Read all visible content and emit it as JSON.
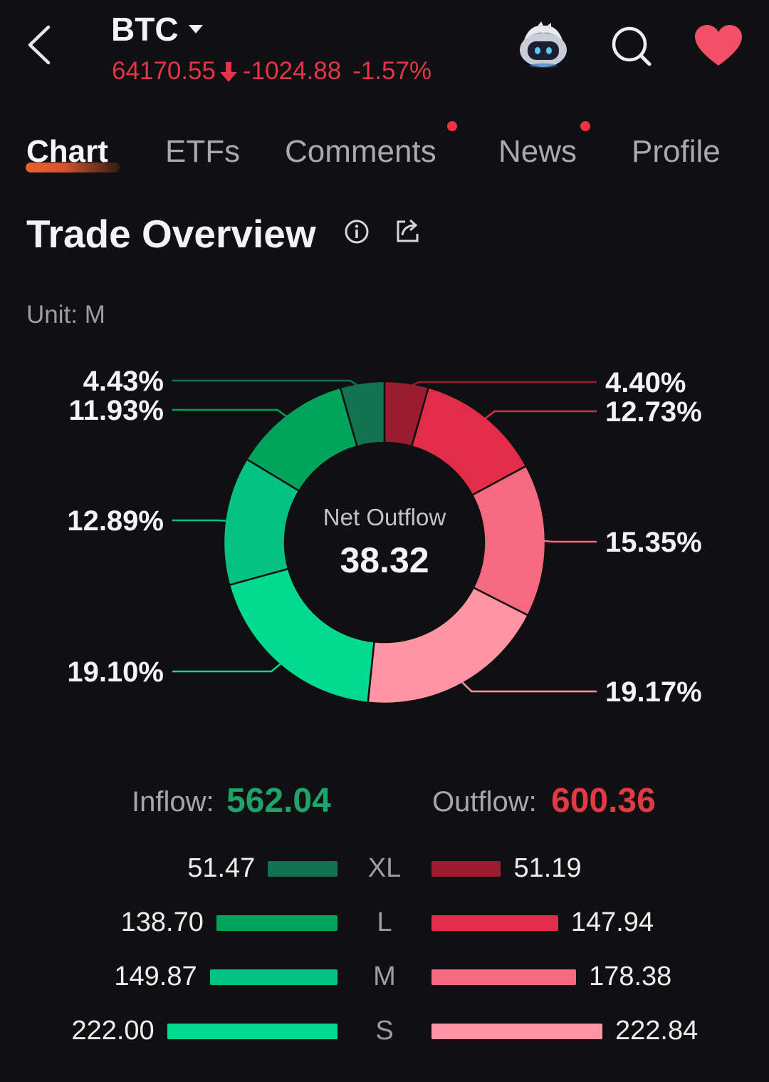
{
  "header": {
    "symbol": "BTC",
    "price": "64170.55",
    "change": "-1024.88",
    "change_pct": "-1.57%",
    "price_color": "#e5344a"
  },
  "tabs": [
    {
      "label": "Chart",
      "active": true
    },
    {
      "label": "ETFs"
    },
    {
      "label": "Comments",
      "badge": true
    },
    {
      "label": "News",
      "badge": true
    },
    {
      "label": "Profile"
    }
  ],
  "section": {
    "title": "Trade Overview",
    "unit": "Unit: M"
  },
  "donut": {
    "center_label": "Net Outflow",
    "center_value": "38.32"
  },
  "totals": {
    "inflow_label": "Inflow:",
    "inflow_value": "562.04",
    "outflow_label": "Outflow:",
    "outflow_value": "600.36"
  },
  "chart_data": {
    "type": "pie",
    "center_label": "Net Outflow",
    "center_value": 38.32,
    "slices": [
      {
        "side": "outflow",
        "size": "XL",
        "percent": "4.40%",
        "value": 51.19,
        "color": "#9b1c2e"
      },
      {
        "side": "outflow",
        "size": "L",
        "percent": "12.73%",
        "value": 147.94,
        "color": "#e22d48"
      },
      {
        "side": "outflow",
        "size": "M",
        "percent": "15.35%",
        "value": 178.38,
        "color": "#f56a80"
      },
      {
        "side": "outflow",
        "size": "S",
        "percent": "19.17%",
        "value": 222.84,
        "color": "#ff94a3"
      },
      {
        "side": "inflow",
        "size": "S",
        "percent": "19.10%",
        "value": 222.0,
        "color": "#02da8f"
      },
      {
        "side": "inflow",
        "size": "M",
        "percent": "12.89%",
        "value": 149.87,
        "color": "#04c382"
      },
      {
        "side": "inflow",
        "size": "L",
        "percent": "11.93%",
        "value": 138.7,
        "color": "#00a45a"
      },
      {
        "side": "inflow",
        "size": "XL",
        "percent": "4.43%",
        "value": 51.47,
        "color": "#137351"
      }
    ]
  },
  "breakdown": [
    {
      "category": "XL",
      "inflow": "51.47",
      "outflow": "51.19",
      "inflow_color": "#137351",
      "outflow_color": "#9b1c2e"
    },
    {
      "category": "L",
      "inflow": "138.70",
      "outflow": "147.94",
      "inflow_color": "#00a45a",
      "outflow_color": "#e22d48"
    },
    {
      "category": "M",
      "inflow": "149.87",
      "outflow": "178.38",
      "inflow_color": "#04c382",
      "outflow_color": "#f56a80"
    },
    {
      "category": "S",
      "inflow": "222.00",
      "outflow": "222.84",
      "inflow_color": "#02da8f",
      "outflow_color": "#ff94a3"
    }
  ]
}
